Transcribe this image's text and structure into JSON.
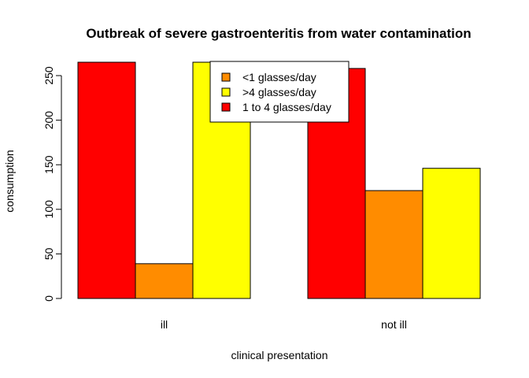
{
  "chart_data": {
    "type": "bar",
    "title": "Outbreak of severe gastroenteritis from water contamination",
    "xlabel": "clinical presentation",
    "ylabel": "consumption",
    "categories": [
      "ill",
      "not ill"
    ],
    "series": [
      {
        "name": "1 to 4 glasses/day",
        "color": "#ff0000",
        "values": [
          265,
          258
        ]
      },
      {
        "name": "<1 glasses/day",
        "color": "#ff8c00",
        "values": [
          39,
          121
        ]
      },
      {
        "name": ">4 glasses/day",
        "color": "#ffff00",
        "values": [
          265,
          146
        ]
      }
    ],
    "legend_order": [
      1,
      2,
      0
    ],
    "ylim": [
      0,
      265
    ],
    "yticks": [
      0,
      50,
      100,
      150,
      200,
      250
    ],
    "grid": false,
    "legend_position": "top-center"
  }
}
